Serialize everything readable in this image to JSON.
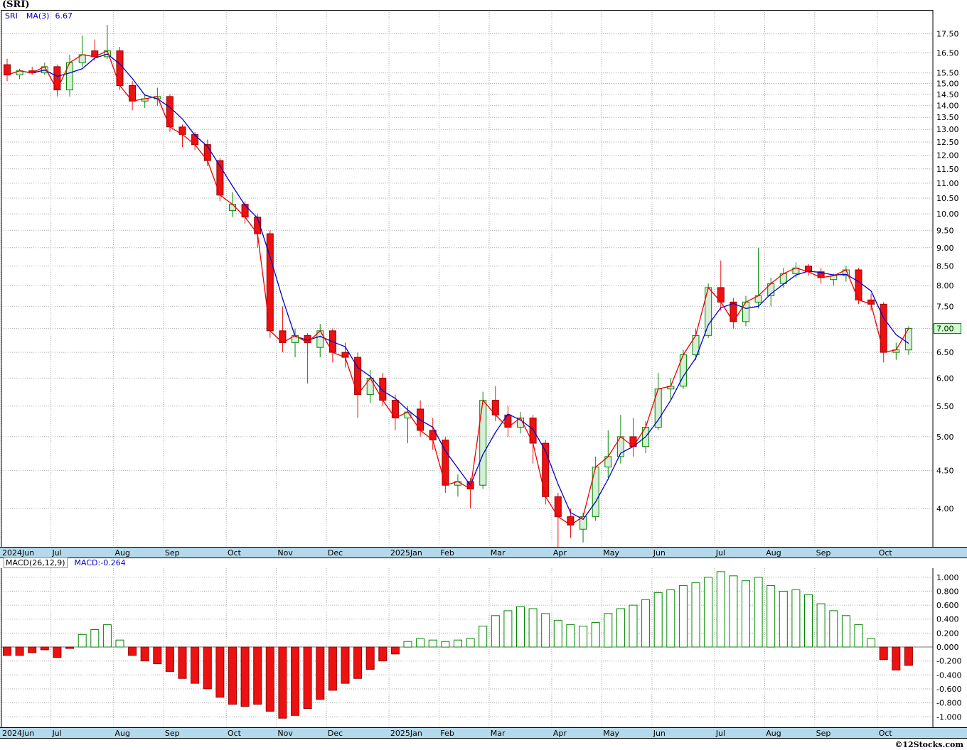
{
  "window": {
    "title": "(SRI)"
  },
  "watermark": "©12Stocks.com",
  "price_panel": {
    "legend_symbol": "SRI",
    "legend_ma": "MA(3)",
    "legend_ma_value": "6.67",
    "current_price_label": "7.00",
    "axis_labels": [
      "17.50",
      "16.50",
      "15.50",
      "15.00",
      "14.50",
      "14.00",
      "13.50",
      "13.00",
      "12.50",
      "12.00",
      "11.50",
      "11.00",
      "10.50",
      "10.00",
      "9.50",
      "9.00",
      "8.50",
      "8.00",
      "7.50",
      "6.50",
      "6.00",
      "5.50",
      "5.00",
      "4.50",
      "4.00"
    ],
    "log_top": 18.85,
    "log_bottom": 3.55
  },
  "macd_panel": {
    "legend_label": "MACD(26,12,9)",
    "legend_value": "MACD:-0.264",
    "axis_labels": [
      "1.000",
      "0.800",
      "0.600",
      "0.400",
      "0.200",
      "0.000",
      "-0.200",
      "-0.400",
      "-0.600",
      "-0.800",
      "-1.000"
    ],
    "y_max": 1.13,
    "y_min": -1.15
  },
  "x_axis": {
    "months": [
      {
        "label": "2024Jun",
        "week": 0
      },
      {
        "label": "Jul",
        "week": 4
      },
      {
        "label": "Aug",
        "week": 9
      },
      {
        "label": "Sep",
        "week": 13
      },
      {
        "label": "Oct",
        "week": 18
      },
      {
        "label": "Nov",
        "week": 22
      },
      {
        "label": "Dec",
        "week": 26
      },
      {
        "label": "2025Jan",
        "week": 31
      },
      {
        "label": "Feb",
        "week": 35
      },
      {
        "label": "Mar",
        "week": 39
      },
      {
        "label": "Apr",
        "week": 44
      },
      {
        "label": "May",
        "week": 48
      },
      {
        "label": "Jun",
        "week": 52
      },
      {
        "label": "Jul",
        "week": 57
      },
      {
        "label": "Aug",
        "week": 61
      },
      {
        "label": "Sep",
        "week": 65
      },
      {
        "label": "Oct",
        "week": 70
      }
    ]
  },
  "chart_data": {
    "type": "candlestick",
    "symbol": "SRI",
    "period": "weekly",
    "weeks": 73,
    "price_axis_scale": "log",
    "series": {
      "open": [
        15.9,
        15.4,
        15.6,
        15.5,
        15.8,
        14.7,
        16.0,
        16.6,
        16.3,
        16.6,
        14.9,
        14.2,
        14.3,
        14.4,
        13.1,
        12.8,
        12.4,
        11.8,
        10.1,
        10.3,
        9.9,
        9.4,
        6.95,
        6.7,
        6.85,
        6.6,
        6.95,
        6.5,
        6.4,
        5.7,
        6.0,
        5.6,
        5.3,
        5.45,
        5.1,
        4.95,
        4.3,
        4.35,
        4.3,
        5.6,
        5.35,
        5.15,
        5.3,
        4.9,
        4.15,
        3.9,
        3.75,
        3.9,
        4.55,
        4.7,
        5.0,
        4.85,
        5.15,
        5.8,
        5.85,
        6.45,
        6.85,
        7.95,
        7.6,
        7.15,
        7.6,
        7.75,
        8.05,
        8.3,
        8.5,
        8.35,
        8.15,
        8.25,
        8.4,
        7.65,
        7.55,
        6.5,
        6.55
      ],
      "high": [
        16.2,
        15.7,
        15.8,
        16.0,
        15.9,
        16.4,
        17.4,
        17.2,
        18.0,
        16.8,
        15.1,
        14.5,
        14.8,
        14.5,
        13.2,
        12.9,
        12.6,
        11.9,
        10.7,
        10.4,
        10.0,
        9.5,
        7.5,
        7.0,
        6.9,
        7.1,
        7.0,
        6.7,
        6.5,
        6.15,
        6.1,
        5.7,
        5.5,
        5.6,
        5.3,
        5.0,
        4.45,
        4.4,
        5.75,
        5.85,
        5.5,
        5.4,
        5.35,
        4.95,
        4.2,
        4.0,
        3.95,
        4.7,
        5.1,
        5.35,
        5.3,
        5.25,
        6.1,
        6.0,
        6.55,
        7.0,
        8.05,
        8.65,
        7.7,
        7.75,
        9.0,
        8.2,
        8.45,
        8.6,
        8.55,
        8.45,
        8.3,
        8.5,
        8.45,
        7.8,
        7.6,
        6.7,
        7.05
      ],
      "low": [
        15.1,
        15.2,
        15.4,
        15.4,
        14.4,
        14.4,
        15.8,
        16.1,
        16.2,
        14.7,
        13.8,
        13.9,
        14.0,
        12.9,
        12.3,
        12.2,
        11.6,
        10.4,
        9.9,
        9.7,
        9.0,
        6.8,
        6.5,
        6.4,
        5.9,
        6.4,
        6.3,
        6.2,
        5.3,
        5.55,
        5.5,
        5.1,
        4.9,
        5.0,
        4.8,
        4.2,
        4.15,
        4.0,
        4.25,
        5.25,
        5.0,
        5.05,
        4.6,
        4.05,
        3.55,
        3.65,
        3.6,
        3.85,
        4.4,
        4.6,
        4.7,
        4.75,
        5.1,
        5.6,
        5.8,
        6.35,
        6.8,
        7.4,
        7.0,
        7.05,
        7.45,
        7.5,
        7.95,
        8.2,
        8.25,
        8.05,
        8.0,
        8.1,
        7.55,
        7.4,
        6.3,
        6.35,
        6.45
      ],
      "close": [
        15.4,
        15.6,
        15.5,
        15.8,
        14.7,
        16.0,
        16.4,
        16.3,
        16.6,
        14.9,
        14.2,
        14.3,
        14.4,
        13.1,
        12.8,
        12.4,
        11.8,
        10.6,
        10.3,
        9.9,
        9.4,
        6.95,
        6.7,
        6.85,
        6.7,
        6.95,
        6.5,
        6.4,
        5.7,
        6.0,
        5.6,
        5.3,
        5.4,
        5.1,
        4.95,
        4.3,
        4.35,
        4.25,
        5.6,
        5.35,
        5.15,
        5.3,
        4.9,
        4.15,
        3.9,
        3.8,
        3.9,
        4.55,
        4.7,
        5.0,
        4.85,
        5.15,
        5.8,
        5.85,
        6.45,
        6.85,
        7.95,
        7.6,
        7.15,
        7.6,
        7.75,
        8.05,
        8.3,
        8.45,
        8.35,
        8.2,
        8.25,
        8.4,
        7.65,
        7.55,
        6.5,
        6.55,
        7.0
      ]
    },
    "overlays": [
      {
        "name": "close-line",
        "color": "#ee0000"
      },
      {
        "name": "MA(3)",
        "period": 3,
        "color": "#0000cc"
      }
    ],
    "macd_histogram": [
      -0.12,
      -0.12,
      -0.08,
      -0.04,
      -0.15,
      -0.02,
      0.18,
      0.25,
      0.32,
      0.1,
      -0.12,
      -0.2,
      -0.24,
      -0.35,
      -0.45,
      -0.52,
      -0.6,
      -0.72,
      -0.82,
      -0.85,
      -0.82,
      -0.92,
      -1.02,
      -0.98,
      -0.88,
      -0.75,
      -0.62,
      -0.52,
      -0.45,
      -0.32,
      -0.2,
      -0.1,
      0.08,
      0.12,
      0.1,
      0.08,
      0.1,
      0.12,
      0.3,
      0.45,
      0.52,
      0.58,
      0.55,
      0.48,
      0.38,
      0.32,
      0.3,
      0.35,
      0.48,
      0.55,
      0.6,
      0.68,
      0.78,
      0.82,
      0.88,
      0.92,
      1.0,
      1.08,
      1.02,
      0.95,
      1.0,
      0.88,
      0.8,
      0.82,
      0.75,
      0.62,
      0.52,
      0.45,
      0.32,
      0.12,
      -0.18,
      -0.33,
      -0.264
    ],
    "colors": {
      "up_fill": "#d7eed7",
      "up_stroke": "#008800",
      "down_fill": "#ee1111",
      "down_stroke": "#990000",
      "grid": "#aaaaaa",
      "border": "#000000",
      "axis_strip": "#b4d9ea",
      "macd_pos_fill": "#ffffff",
      "macd_pos_stroke": "#008800",
      "macd_neg_fill": "#ee1111",
      "macd_neg_stroke": "#990000",
      "current_price_bg": "#ccffcc",
      "current_price_border": "#007700"
    }
  }
}
